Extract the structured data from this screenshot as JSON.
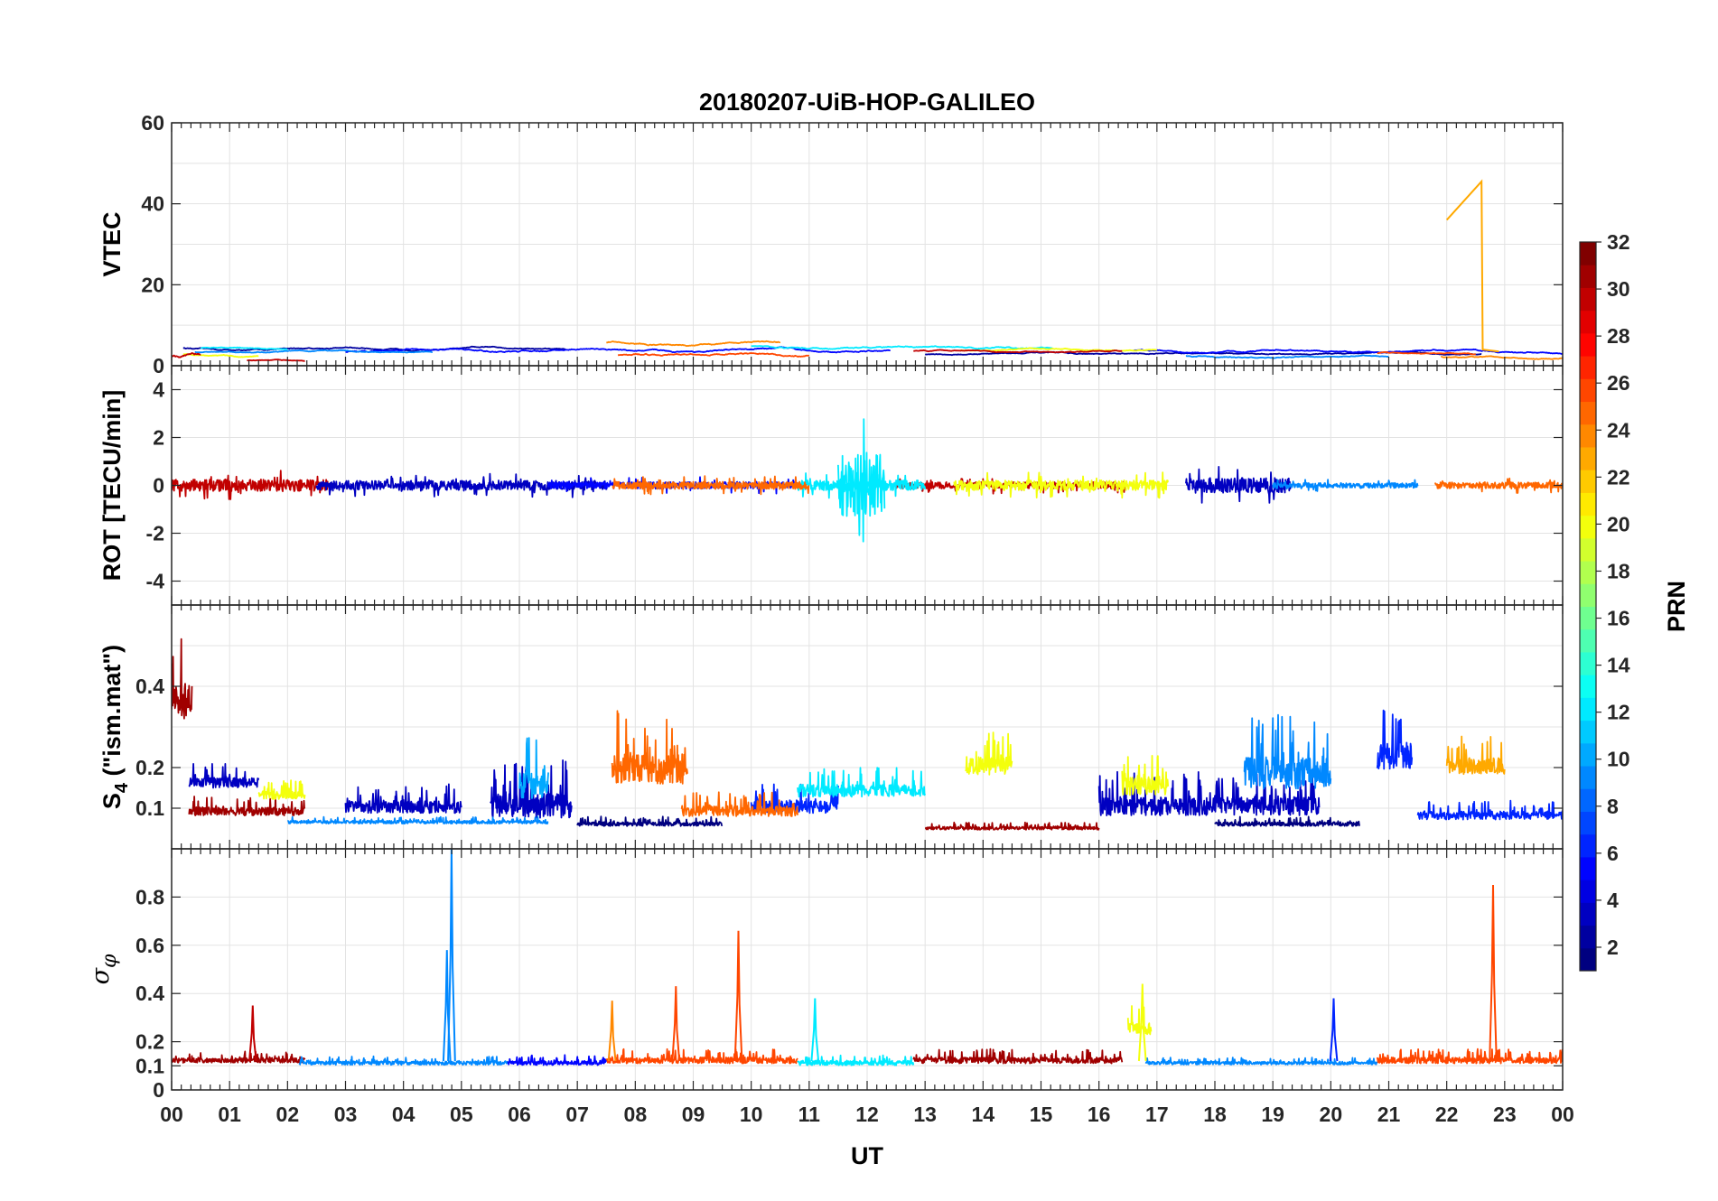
{
  "chart_data": {
    "type": "line",
    "title": "20180207-UiB-HOP-GALILEO",
    "xlabel": "UT",
    "x_ticks": [
      "00",
      "01",
      "02",
      "03",
      "04",
      "05",
      "06",
      "07",
      "08",
      "09",
      "10",
      "11",
      "12",
      "13",
      "14",
      "15",
      "16",
      "17",
      "18",
      "19",
      "20",
      "21",
      "22",
      "23",
      "00"
    ],
    "xlim": [
      0,
      24
    ],
    "grid": true,
    "panels": [
      {
        "id": "vtec",
        "ylabel": "VTEC",
        "ylim": [
          0,
          60
        ],
        "y_ticks": [
          {
            "v": 0,
            "label": "0"
          },
          {
            "v": 20,
            "label": "20"
          },
          {
            "v": 40,
            "label": "40"
          },
          {
            "v": 60,
            "label": "60"
          }
        ],
        "grid_y": [
          0,
          10,
          20,
          30,
          40,
          50,
          60
        ],
        "series": [
          {
            "prn": 2,
            "segments": [
              {
                "start": 0.2,
                "end": 6.8,
                "base": 4.2,
                "noise": 0.5
              },
              {
                "start": 13.0,
                "end": 22.6,
                "base": 3.0,
                "noise": 0.4
              }
            ]
          },
          {
            "prn": 5,
            "segments": [
              {
                "start": 3.0,
                "end": 12.4,
                "base": 3.8,
                "noise": 0.6
              },
              {
                "start": 16.6,
                "end": 24,
                "base": 3.5,
                "noise": 0.5
              }
            ]
          },
          {
            "prn": 9,
            "segments": [
              {
                "start": 0.4,
                "end": 4.5,
                "base": 3.5,
                "noise": 0.4
              },
              {
                "start": 17.5,
                "end": 21.0,
                "base": 2.2,
                "noise": 0.4
              }
            ]
          },
          {
            "prn": 12,
            "segments": [
              {
                "start": 0.5,
                "end": 2.0,
                "base": 4.2,
                "noise": 0.4
              },
              {
                "start": 10.0,
                "end": 15.2,
                "base": 4.5,
                "noise": 0.5
              }
            ]
          },
          {
            "prn": 20,
            "segments": [
              {
                "start": 0.2,
                "end": 1.5,
                "base": 2.5,
                "noise": 0.5
              },
              {
                "start": 13.6,
                "end": 17.0,
                "base": 4.0,
                "noise": 0.4
              }
            ]
          },
          {
            "prn": 24,
            "segments": [
              {
                "start": 7.5,
                "end": 10.5,
                "base": 5.5,
                "noise": 0.6
              },
              {
                "start": 21.9,
                "end": 24,
                "base": 2.0,
                "noise": 0.4
              }
            ]
          },
          {
            "prn": 26,
            "segments": [
              {
                "start": 7.7,
                "end": 11.0,
                "base": 2.8,
                "noise": 0.6
              },
              {
                "start": 20.8,
                "end": 22.5,
                "base": 3.0,
                "noise": 0.4
              }
            ]
          },
          {
            "prn": 30,
            "segments": [
              {
                "start": 0.0,
                "end": 0.5,
                "base": 3.0,
                "noise": 1.2
              },
              {
                "start": 1.3,
                "end": 2.3,
                "base": 1.2,
                "noise": 0.3
              },
              {
                "start": 12.8,
                "end": 16.4,
                "base": 3.5,
                "noise": 0.4
              }
            ]
          }
        ],
        "extra_lines": [
          {
            "prn": 23,
            "x": [
              22.0,
              22.6,
              22.62,
              22.9
            ],
            "y": [
              36,
              45.5,
              4,
              3.5
            ]
          }
        ]
      },
      {
        "id": "rot",
        "ylabel": "ROT [TECU/min]",
        "ylim": [
          -5,
          5
        ],
        "y_ticks": [
          {
            "v": -4,
            "label": "-4"
          },
          {
            "v": -2,
            "label": "-2"
          },
          {
            "v": 0,
            "label": "0"
          },
          {
            "v": 2,
            "label": "2"
          },
          {
            "v": 4,
            "label": "4"
          }
        ],
        "grid_y": [
          -4,
          -2,
          0,
          2,
          4
        ],
        "series": [
          {
            "prn": 30,
            "segments": [
              {
                "start": 0.0,
                "end": 2.7,
                "base": 0,
                "noise": 0.35
              },
              {
                "start": 12.5,
                "end": 16.5,
                "base": 0,
                "noise": 0.2
              }
            ]
          },
          {
            "prn": 3,
            "segments": [
              {
                "start": 2.5,
                "end": 7.5,
                "base": 0,
                "noise": 0.28
              },
              {
                "start": 17.5,
                "end": 19.3,
                "base": 0,
                "noise": 0.45
              }
            ]
          },
          {
            "prn": 5,
            "segments": [
              {
                "start": 6.5,
                "end": 10.8,
                "base": 0,
                "noise": 0.2
              }
            ]
          },
          {
            "prn": 9,
            "segments": [
              {
                "start": 19.0,
                "end": 21.5,
                "base": 0,
                "noise": 0.15
              }
            ]
          },
          {
            "prn": 12,
            "segments": [
              {
                "start": 11.5,
                "end": 12.3,
                "base": 0,
                "noise": 1.9
              },
              {
                "start": 10.8,
                "end": 13.0,
                "base": 0,
                "noise": 0.3
              }
            ]
          },
          {
            "prn": 20,
            "segments": [
              {
                "start": 13.5,
                "end": 17.2,
                "base": 0,
                "noise": 0.3
              }
            ]
          },
          {
            "prn": 25,
            "segments": [
              {
                "start": 7.6,
                "end": 11.0,
                "base": 0,
                "noise": 0.22
              },
              {
                "start": 21.8,
                "end": 24,
                "base": 0,
                "noise": 0.18
              }
            ]
          }
        ]
      },
      {
        "id": "s4",
        "ylabel": "S4 (\"ism.mat\")",
        "ylabel_main": "S",
        "ylabel_sub": "4",
        "ylabel_rest": " (\"ism.mat\")",
        "ylim": [
          0.0,
          0.6
        ],
        "y_ticks": [
          {
            "v": 0.1,
            "label": "0.1"
          },
          {
            "v": 0.2,
            "label": "0.2"
          },
          {
            "v": 0.4,
            "label": "0.4"
          }
        ],
        "grid_y": [
          0.1,
          0.2,
          0.3,
          0.4,
          0.5
        ],
        "series": [
          {
            "prn": 31,
            "segments": [
              {
                "start": 0.0,
                "end": 0.35,
                "base": 0.35,
                "noise": 0.18
              },
              {
                "start": 0.3,
                "end": 2.3,
                "base": 0.09,
                "noise": 0.04
              },
              {
                "start": 13.0,
                "end": 16.0,
                "base": 0.05,
                "noise": 0.015
              }
            ]
          },
          {
            "prn": 3,
            "segments": [
              {
                "start": 0.3,
                "end": 1.5,
                "base": 0.16,
                "noise": 0.05
              },
              {
                "start": 3.0,
                "end": 5.0,
                "base": 0.1,
                "noise": 0.06
              },
              {
                "start": 5.5,
                "end": 6.9,
                "base": 0.1,
                "noise": 0.12
              },
              {
                "start": 16.0,
                "end": 19.8,
                "base": 0.1,
                "noise": 0.09
              }
            ]
          },
          {
            "prn": 1,
            "segments": [
              {
                "start": 7.0,
                "end": 9.5,
                "base": 0.06,
                "noise": 0.02
              },
              {
                "start": 18.0,
                "end": 20.5,
                "base": 0.06,
                "noise": 0.02
              }
            ]
          },
          {
            "prn": 9,
            "segments": [
              {
                "start": 2.0,
                "end": 6.5,
                "base": 0.065,
                "noise": 0.015
              },
              {
                "start": 18.5,
                "end": 20.0,
                "base": 0.18,
                "noise": 0.16
              }
            ]
          },
          {
            "prn": 6,
            "segments": [
              {
                "start": 10.0,
                "end": 11.5,
                "base": 0.1,
                "noise": 0.06
              },
              {
                "start": 20.8,
                "end": 21.4,
                "base": 0.22,
                "noise": 0.13
              },
              {
                "start": 21.5,
                "end": 24,
                "base": 0.08,
                "noise": 0.04
              }
            ]
          },
          {
            "prn": 12,
            "segments": [
              {
                "start": 10.8,
                "end": 13.0,
                "base": 0.14,
                "noise": 0.06
              }
            ]
          },
          {
            "prn": 20,
            "segments": [
              {
                "start": 1.5,
                "end": 2.3,
                "base": 0.13,
                "noise": 0.04
              },
              {
                "start": 13.7,
                "end": 14.5,
                "base": 0.2,
                "noise": 0.09
              },
              {
                "start": 16.4,
                "end": 17.2,
                "base": 0.15,
                "noise": 0.09
              }
            ]
          },
          {
            "prn": 25,
            "segments": [
              {
                "start": 7.6,
                "end": 8.9,
                "base": 0.19,
                "noise": 0.15
              },
              {
                "start": 8.8,
                "end": 10.8,
                "base": 0.09,
                "noise": 0.05
              }
            ]
          },
          {
            "prn": 23,
            "segments": [
              {
                "start": 22.0,
                "end": 23.0,
                "base": 0.2,
                "noise": 0.08
              }
            ]
          },
          {
            "prn": 10,
            "segments": [
              {
                "start": 6.0,
                "end": 6.5,
                "base": 0.15,
                "noise": 0.13
              }
            ]
          }
        ]
      },
      {
        "id": "sigma",
        "ylabel": "σφ",
        "ylabel_main": "σ",
        "ylabel_sub": "φ",
        "ylim": [
          0,
          1
        ],
        "y_ticks": [
          {
            "v": 0,
            "label": "0"
          },
          {
            "v": 0.1,
            "label": "0.1"
          },
          {
            "v": 0.2,
            "label": "0.2"
          },
          {
            "v": 0.4,
            "label": "0.4"
          },
          {
            "v": 0.6,
            "label": "0.6"
          },
          {
            "v": 0.8,
            "label": "0.8"
          }
        ],
        "grid_y": [
          0.1,
          0.2,
          0.4,
          0.6,
          0.8
        ],
        "series": [
          {
            "prn": 31,
            "segments": [
              {
                "start": 0.0,
                "end": 2.3,
                "base": 0.12,
                "noise": 0.04
              },
              {
                "start": 12.8,
                "end": 16.4,
                "base": 0.12,
                "noise": 0.05
              }
            ]
          },
          {
            "prn": 9,
            "segments": [
              {
                "start": 2.2,
                "end": 5.8,
                "base": 0.11,
                "noise": 0.03
              },
              {
                "start": 16.8,
                "end": 20.8,
                "base": 0.11,
                "noise": 0.025
              }
            ]
          },
          {
            "prn": 5,
            "segments": [
              {
                "start": 5.8,
                "end": 7.5,
                "base": 0.11,
                "noise": 0.035
              }
            ]
          },
          {
            "prn": 26,
            "segments": [
              {
                "start": 7.5,
                "end": 10.8,
                "base": 0.12,
                "noise": 0.05
              },
              {
                "start": 20.8,
                "end": 24,
                "base": 0.12,
                "noise": 0.05
              }
            ]
          },
          {
            "prn": 12,
            "segments": [
              {
                "start": 10.8,
                "end": 12.8,
                "base": 0.11,
                "noise": 0.04
              }
            ]
          },
          {
            "prn": 20,
            "segments": [
              {
                "start": 16.5,
                "end": 16.9,
                "base": 0.25,
                "noise": 0.1
              }
            ]
          }
        ],
        "spikes": [
          {
            "prn": 30,
            "x": 1.4,
            "y": 0.35
          },
          {
            "prn": 9,
            "x": 4.75,
            "y": 0.58
          },
          {
            "prn": 9,
            "x": 4.83,
            "y": 1.0
          },
          {
            "prn": 24,
            "x": 7.6,
            "y": 0.37
          },
          {
            "prn": 26,
            "x": 8.7,
            "y": 0.43
          },
          {
            "prn": 26,
            "x": 9.78,
            "y": 0.66
          },
          {
            "prn": 12,
            "x": 11.1,
            "y": 0.38
          },
          {
            "prn": 20,
            "x": 16.75,
            "y": 0.44
          },
          {
            "prn": 6,
            "x": 20.05,
            "y": 0.38
          },
          {
            "prn": 26,
            "x": 22.8,
            "y": 0.85
          }
        ]
      }
    ],
    "colorbar": {
      "label": "PRN",
      "range": [
        1,
        32
      ],
      "ticks": [
        "2",
        "4",
        "6",
        "8",
        "10",
        "12",
        "14",
        "16",
        "18",
        "20",
        "22",
        "24",
        "26",
        "28",
        "30",
        "32"
      ],
      "tick_values": [
        2,
        4,
        6,
        8,
        10,
        12,
        14,
        16,
        18,
        20,
        22,
        24,
        26,
        28,
        30,
        32
      ],
      "colormap": "jet",
      "levels": 32
    }
  }
}
